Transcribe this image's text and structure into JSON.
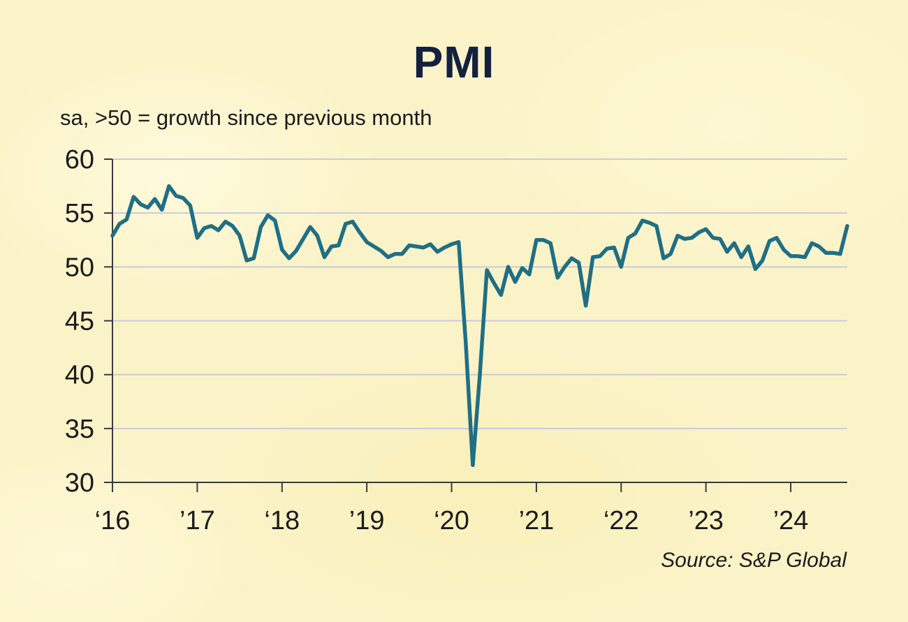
{
  "title": "PMI",
  "subtitle": "sa, >50 = growth since previous month",
  "source": "Source: S&P Global",
  "colors": {
    "line": "#1f6f85",
    "grid": "#c9ccd8",
    "axis": "#3a3a3a",
    "text": "#1b1b1b",
    "title": "#14203f"
  },
  "chart_data": {
    "type": "line",
    "title": "PMI",
    "subtitle": "sa, >50 = growth since previous month",
    "xlabel": "",
    "ylabel": "",
    "ylim": [
      30,
      60
    ],
    "yticks": [
      30,
      35,
      40,
      45,
      50,
      55,
      60
    ],
    "xlim": [
      "2016-01",
      "2024-09"
    ],
    "xticks": [
      {
        "label": "‘16",
        "date": "2016-01"
      },
      {
        "label": "’17",
        "date": "2017-01"
      },
      {
        "label": "‘18",
        "date": "2018-01"
      },
      {
        "label": "’19",
        "date": "2019-01"
      },
      {
        "label": "‘20",
        "date": "2020-01"
      },
      {
        "label": "’21",
        "date": "2021-01"
      },
      {
        "label": "‘22",
        "date": "2022-01"
      },
      {
        "label": "’23",
        "date": "2023-01"
      },
      {
        "label": "’24",
        "date": "2024-01"
      }
    ],
    "grid": true,
    "legend": "none",
    "series": [
      {
        "start": "2016-01",
        "frequency": "monthly",
        "values": [
          52.9,
          54.0,
          54.4,
          56.5,
          55.8,
          55.5,
          56.3,
          55.3,
          57.5,
          56.6,
          56.4,
          55.7,
          52.7,
          53.6,
          53.8,
          53.4,
          54.2,
          53.8,
          52.9,
          50.6,
          50.8,
          53.7,
          54.8,
          54.3,
          51.6,
          50.8,
          51.5,
          52.6,
          53.7,
          52.9,
          50.9,
          51.9,
          52.0,
          54.0,
          54.2,
          53.2,
          52.3,
          51.9,
          51.5,
          50.9,
          51.2,
          51.2,
          52.0,
          51.9,
          51.8,
          52.1,
          51.4,
          51.8,
          52.1,
          52.3,
          43.0,
          31.6,
          40.0,
          49.7,
          48.5,
          47.4,
          50.0,
          48.6,
          49.9,
          49.3,
          52.5,
          52.5,
          52.2,
          49.0,
          50.0,
          50.8,
          50.4,
          46.4,
          50.9,
          51.0,
          51.7,
          51.8,
          50.0,
          52.7,
          53.1,
          54.3,
          54.1,
          53.8,
          50.8,
          51.2,
          52.9,
          52.6,
          52.7,
          53.2,
          53.5,
          52.7,
          52.6,
          51.4,
          52.2,
          50.9,
          51.9,
          49.8,
          50.6,
          52.4,
          52.7,
          51.6,
          51.0,
          51.0,
          50.9,
          52.2,
          51.9,
          51.3,
          51.3,
          51.2,
          53.8
        ]
      }
    ]
  }
}
